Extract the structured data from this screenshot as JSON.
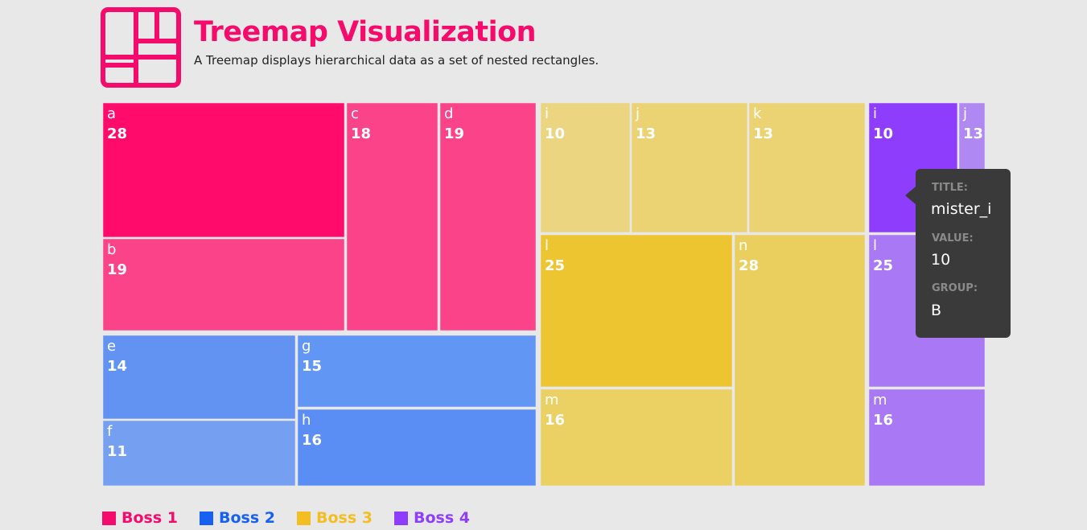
{
  "header": {
    "title": "Treemap Visualization",
    "subtitle": "A Treemap displays hierarchical data as a set of nested rectangles."
  },
  "colors": {
    "accent": "#f50b6b",
    "boss1": "#f50b6b",
    "boss2": "#1660f2",
    "boss3": "#f2be22",
    "boss4": "#8f3dfc"
  },
  "tooltip": {
    "title_label": "TITLE:",
    "title_value": "mister_i",
    "value_label": "VALUE:",
    "value_value": "10",
    "group_label": "GROUP:",
    "group_value": "B"
  },
  "legend": [
    {
      "label": "Boss 1",
      "color": "#f50b6b"
    },
    {
      "label": "Boss 2",
      "color": "#1660f2"
    },
    {
      "label": "Boss 3",
      "color": "#f2be22"
    },
    {
      "label": "Boss 4",
      "color": "#8f3dfc"
    }
  ],
  "chart_data": {
    "type": "treemap",
    "groups": [
      {
        "name": "Boss 1",
        "children": [
          {
            "name": "a",
            "value": 28,
            "color": "#ff0b6b"
          },
          {
            "name": "b",
            "value": 19,
            "color": "#fa4388"
          },
          {
            "name": "c",
            "value": 18,
            "color": "#fa4388"
          },
          {
            "name": "d",
            "value": 19,
            "color": "#fa4388"
          }
        ]
      },
      {
        "name": "Boss 2",
        "children": [
          {
            "name": "e",
            "value": 14,
            "color": "#6293f2"
          },
          {
            "name": "f",
            "value": 11,
            "color": "#75a0f2"
          },
          {
            "name": "g",
            "value": 15,
            "color": "#6296f4"
          },
          {
            "name": "h",
            "value": 16,
            "color": "#5b8ef5"
          }
        ]
      },
      {
        "name": "Boss 3",
        "children": [
          {
            "name": "i",
            "value": 10,
            "color": "#ebd581"
          },
          {
            "name": "j",
            "value": 13,
            "color": "#ebd373"
          },
          {
            "name": "k",
            "value": 13,
            "color": "#ebd373"
          },
          {
            "name": "l",
            "value": 25,
            "color": "#edc531"
          },
          {
            "name": "m",
            "value": 16,
            "color": "#ebd064"
          },
          {
            "name": "n",
            "value": 28,
            "color": "#ebcf5e"
          }
        ]
      },
      {
        "name": "Boss 4",
        "children": [
          {
            "name": "i",
            "value": 10,
            "color": "#8f3dfc"
          },
          {
            "name": "j",
            "value": 13,
            "color": "#b088f2"
          },
          {
            "name": "l",
            "value": 25,
            "color": "#a878f5"
          },
          {
            "name": "m",
            "value": 16,
            "color": "#a878f5"
          }
        ]
      }
    ]
  }
}
